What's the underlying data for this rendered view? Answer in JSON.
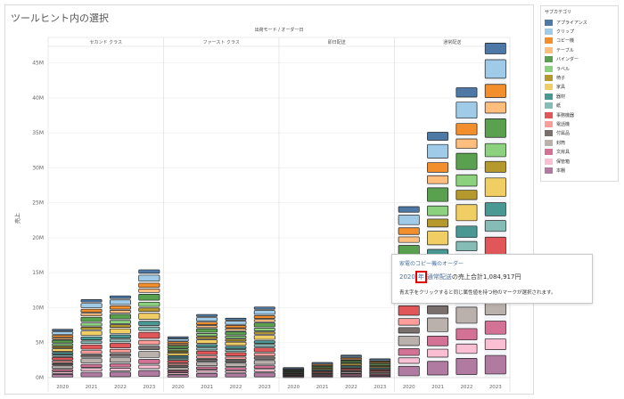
{
  "title": "ツールヒント内の選択",
  "shelf_header": "出荷モード / オーダー日",
  "legend": {
    "title": "サブカテゴリ",
    "items": [
      {
        "label": "アプライアンス",
        "color": "#4e79a7"
      },
      {
        "label": "クリップ",
        "color": "#a0cbe8"
      },
      {
        "label": "コピー機",
        "color": "#f28e2b"
      },
      {
        "label": "テーブル",
        "color": "#ffbe7d"
      },
      {
        "label": "バインダー",
        "color": "#59a14f"
      },
      {
        "label": "ラベル",
        "color": "#8cd17d"
      },
      {
        "label": "椅子",
        "color": "#b6992d"
      },
      {
        "label": "家具",
        "color": "#f1ce63"
      },
      {
        "label": "器材",
        "color": "#499894"
      },
      {
        "label": "紙",
        "color": "#86bcb6"
      },
      {
        "label": "事務機器",
        "color": "#e15759"
      },
      {
        "label": "電話機",
        "color": "#ff9d9a"
      },
      {
        "label": "付属品",
        "color": "#79706e"
      },
      {
        "label": "封筒",
        "color": "#bab0ac"
      },
      {
        "label": "文房具",
        "color": "#d37295"
      },
      {
        "label": "保管箱",
        "color": "#fabfd2"
      },
      {
        "label": "本棚",
        "color": "#b07aa1"
      }
    ]
  },
  "tooltip": {
    "line1": "家電のコピー機のオーダー",
    "year": "2020",
    "mode_a": "年",
    "mode_b": "通常配送",
    "total": "の売上合計1,084,917円",
    "hint": "青太字をクリックすると同じ属性値を持つ他のマークが選択されます。"
  },
  "chart_data": {
    "type": "bar",
    "ylabel": "売上",
    "yticks": [
      "0M",
      "5M",
      "10M",
      "15M",
      "20M",
      "25M",
      "30M",
      "35M",
      "40M",
      "45M"
    ],
    "ylim": [
      0,
      47
    ],
    "panels": [
      {
        "name": "セカンド クラス",
        "categories": [
          "2020",
          "2021",
          "2022",
          "2023"
        ],
        "values": [
          6.5,
          10.5,
          11,
          14.5
        ]
      },
      {
        "name": "ファースト クラス",
        "categories": [
          "2020",
          "2021",
          "2022",
          "2023"
        ],
        "values": [
          5.5,
          8.5,
          8,
          9.5
        ]
      },
      {
        "name": "即日配送",
        "categories": [
          "2020",
          "2021",
          "2022",
          "2023"
        ],
        "values": [
          1.3,
          2,
          3,
          2.5
        ]
      },
      {
        "name": "通常配送",
        "categories": [
          "2020",
          "2021",
          "2022",
          "2023"
        ],
        "values": [
          23,
          33,
          39,
          45
        ]
      }
    ]
  }
}
